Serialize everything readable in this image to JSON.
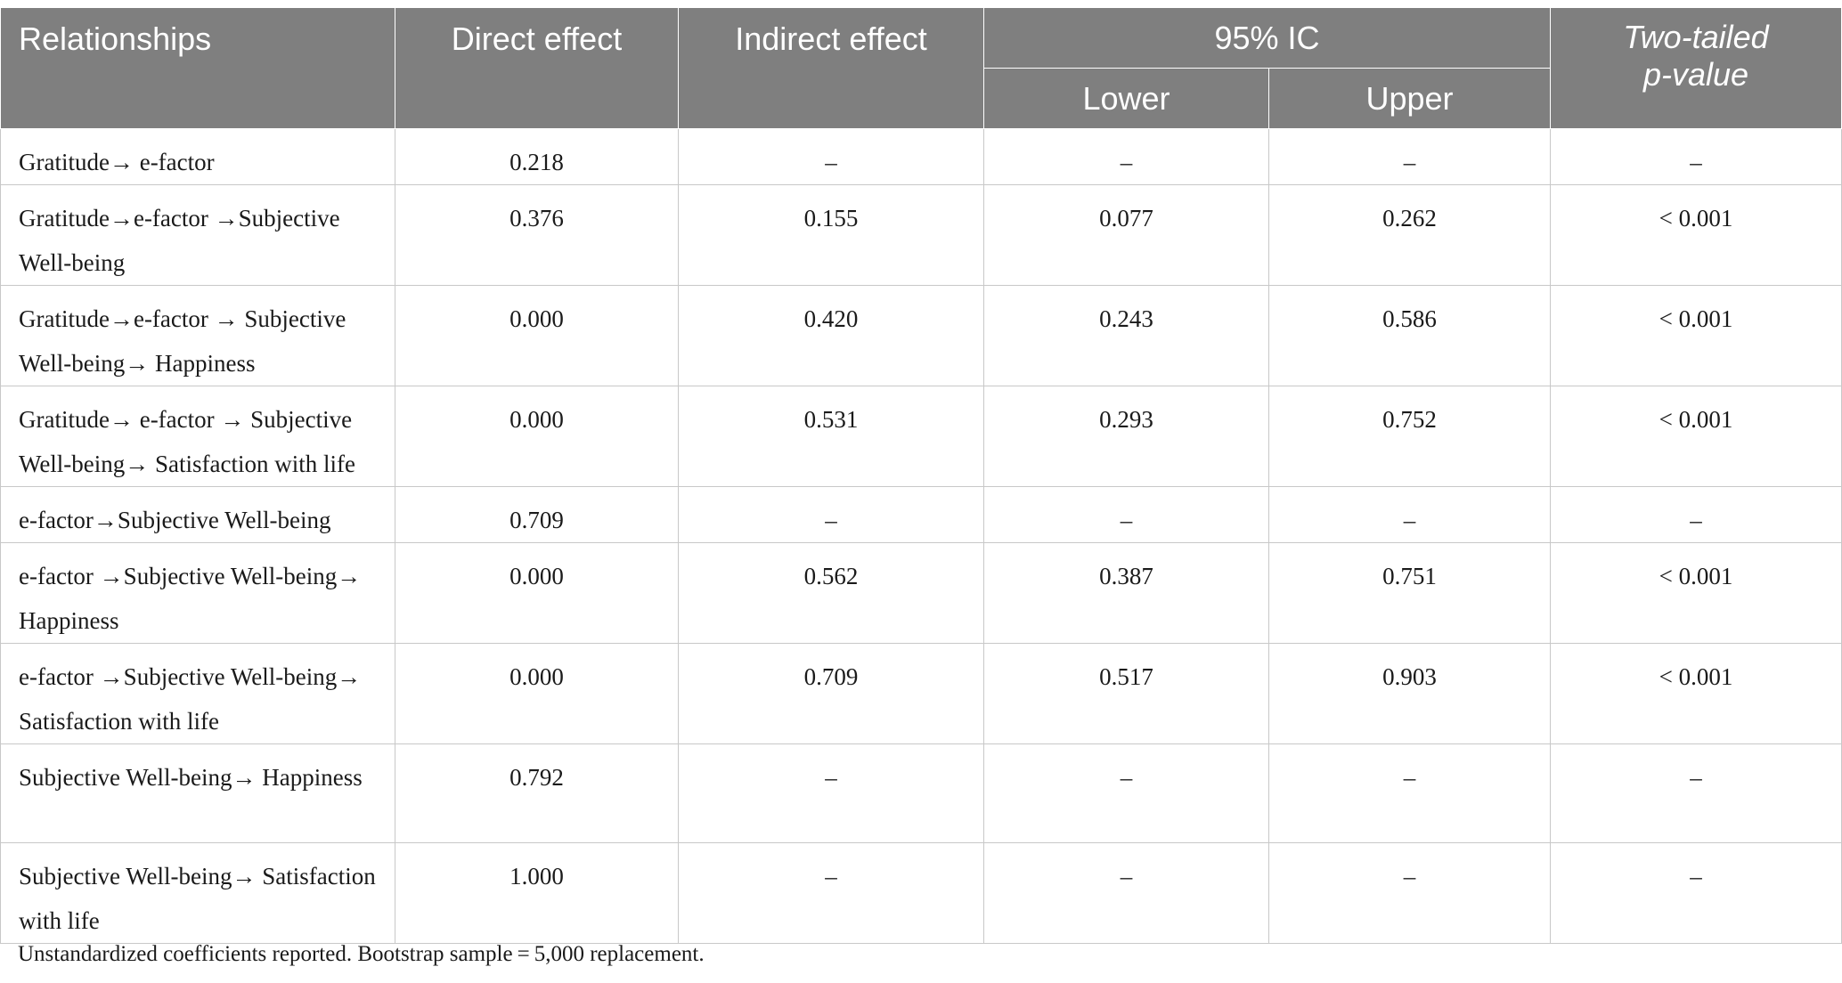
{
  "table": {
    "headers": {
      "relationships": "Relationships",
      "direct_effect": "Direct effect",
      "indirect_effect": "Indirect effect",
      "ic": "95% IC",
      "lower": "Lower",
      "upper": "Upper",
      "pvalue_line1": "Two-tailed",
      "pvalue_line2": "p-value"
    },
    "rows": [
      {
        "relationship": "Gratitude→ e-factor",
        "direct": "0.218",
        "indirect": "–",
        "lower": "–",
        "upper": "–",
        "p": "–"
      },
      {
        "relationship": "Gratitude→e-factor →Subjective Well-being",
        "direct": "0.376",
        "indirect": "0.155",
        "lower": "0.077",
        "upper": "0.262",
        "p": "< 0.001"
      },
      {
        "relationship": "Gratitude→e-factor → Subjective Well-being→ Happiness",
        "direct": "0.000",
        "indirect": "0.420",
        "lower": "0.243",
        "upper": "0.586",
        "p": "< 0.001"
      },
      {
        "relationship": "Gratitude→ e-factor → Subjective Well-being→ Satisfaction with life",
        "direct": "0.000",
        "indirect": "0.531",
        "lower": "0.293",
        "upper": "0.752",
        "p": "< 0.001"
      },
      {
        "relationship": "e-factor→Subjective Well-being",
        "direct": "0.709",
        "indirect": "–",
        "lower": "–",
        "upper": "–",
        "p": "–"
      },
      {
        "relationship": "e-factor →Subjective Well-being→ Happiness",
        "direct": "0.000",
        "indirect": "0.562",
        "lower": "0.387",
        "upper": "0.751",
        "p": "< 0.001"
      },
      {
        "relationship": "e-factor →Subjective Well-being→ Satisfaction with life",
        "direct": "0.000",
        "indirect": "0.709",
        "lower": "0.517",
        "upper": "0.903",
        "p": "< 0.001"
      },
      {
        "relationship": "Subjective Well-being→ Happiness",
        "direct": "0.792",
        "indirect": "–",
        "lower": "–",
        "upper": "–",
        "p": "–"
      },
      {
        "relationship": "Subjective Well-being→ Satisfaction with life",
        "direct": "1.000",
        "indirect": "–",
        "lower": "–",
        "upper": "–",
        "p": "–"
      }
    ]
  },
  "note": "Unstandardized coefficients reported. Bootstrap sample = 5,000 replacement.",
  "colors": {
    "header_bg": "#7f7f7f",
    "header_text": "#ffffff",
    "grid": "#c8c8c8"
  }
}
